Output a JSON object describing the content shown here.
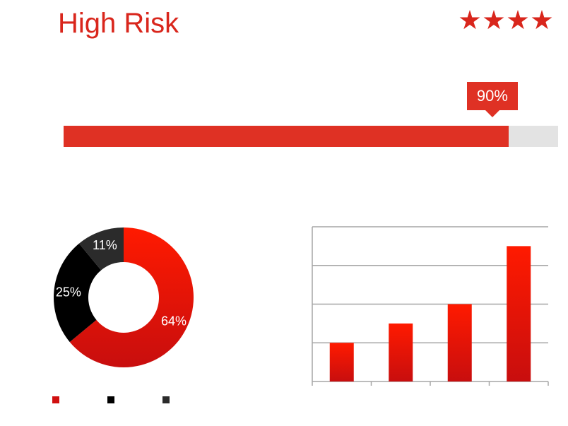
{
  "header": {
    "title": "High Risk",
    "star_count": 4,
    "accent_color": "#d9261c"
  },
  "risk_bar": {
    "value_percent": 90,
    "label": "90%",
    "fill_color": "#df3124",
    "track_color": "#e3e3e3"
  },
  "chart_data": [
    {
      "type": "pie",
      "variant": "donut",
      "slices": [
        {
          "label": "64%",
          "value": 64,
          "color": "#d01010"
        },
        {
          "label": "25%",
          "value": 25,
          "color": "#000000"
        },
        {
          "label": "11%",
          "value": 11,
          "color": "#2b2b2b"
        }
      ],
      "legend": {
        "placement": "bottom-left",
        "entries": [
          "",
          "",
          ""
        ]
      }
    },
    {
      "type": "bar",
      "categories": [
        "",
        "",
        "",
        ""
      ],
      "values": [
        1,
        1.5,
        2,
        3.5
      ],
      "ylim": [
        0,
        4
      ],
      "grid": true,
      "bar_color": "#e01a10"
    }
  ]
}
